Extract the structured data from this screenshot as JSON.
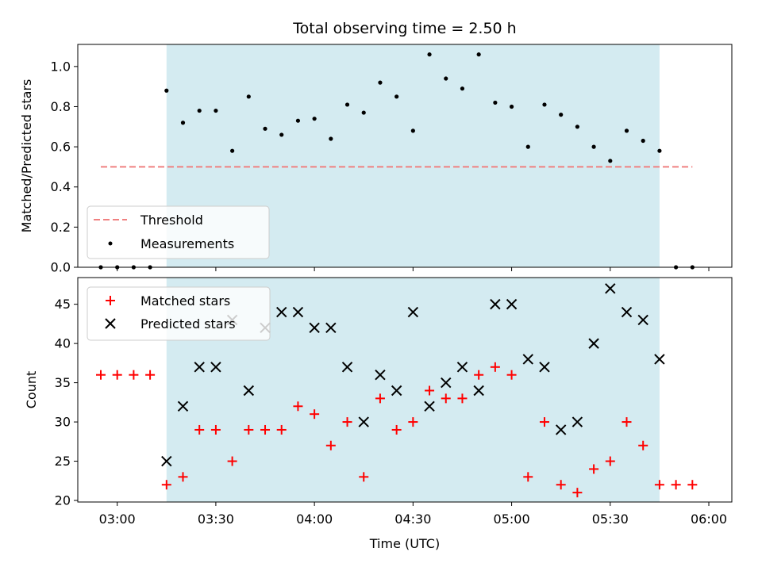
{
  "colors": {
    "shade": "#d4ebf1",
    "threshold": "#f08080",
    "matched": "#ff0000",
    "predicted": "#000000",
    "measurement": "#000000"
  },
  "chart_data": [
    {
      "type": "scatter",
      "title": "Total observing time = 2.50 h",
      "xlabel": "",
      "ylabel": "Matched/Predicted stars",
      "ylim": [
        0,
        1.11
      ],
      "xlim": [
        "02:48",
        "06:07"
      ],
      "yticks": [
        "0.0",
        "0.2",
        "0.4",
        "0.6",
        "0.8",
        "1.0"
      ],
      "shaded_interval": [
        "03:15",
        "05:45"
      ],
      "legend_position": "lower-left",
      "series": [
        {
          "name": "Threshold",
          "style": "dashed-line",
          "x": [
            "02:55",
            "05:55"
          ],
          "y": [
            0.5,
            0.5
          ]
        },
        {
          "name": "Measurements",
          "style": "dot",
          "x": [
            "02:55",
            "03:00",
            "03:05",
            "03:10",
            "03:15",
            "03:20",
            "03:25",
            "03:30",
            "03:35",
            "03:40",
            "03:45",
            "03:50",
            "03:55",
            "04:00",
            "04:05",
            "04:10",
            "04:15",
            "04:20",
            "04:25",
            "04:30",
            "04:35",
            "04:40",
            "04:45",
            "04:50",
            "04:55",
            "05:00",
            "05:05",
            "05:10",
            "05:15",
            "05:20",
            "05:25",
            "05:30",
            "05:35",
            "05:40",
            "05:45",
            "05:50",
            "05:55"
          ],
          "y": [
            0.0,
            0.0,
            0.0,
            0.0,
            0.88,
            0.72,
            0.78,
            0.78,
            0.58,
            0.85,
            0.69,
            0.66,
            0.73,
            0.74,
            0.64,
            0.81,
            0.77,
            0.92,
            0.85,
            0.68,
            1.06,
            0.94,
            0.89,
            1.06,
            0.82,
            0.8,
            0.6,
            0.81,
            0.76,
            0.7,
            0.6,
            0.53,
            0.68,
            0.63,
            0.58,
            0.0,
            0.0
          ]
        }
      ]
    },
    {
      "type": "scatter",
      "title": "",
      "xlabel": "Time (UTC)",
      "ylabel": "Count",
      "ylim": [
        19.8,
        48.4
      ],
      "xlim": [
        "02:48",
        "06:07"
      ],
      "yticks": [
        "20",
        "25",
        "30",
        "35",
        "40",
        "45"
      ],
      "xticks": [
        "03:00",
        "03:30",
        "04:00",
        "04:30",
        "05:00",
        "05:30",
        "06:00"
      ],
      "shaded_interval": [
        "03:15",
        "05:45"
      ],
      "legend_position": "upper-left",
      "series": [
        {
          "name": "Matched stars",
          "style": "plus",
          "x": [
            "02:55",
            "03:00",
            "03:05",
            "03:10",
            "03:15",
            "03:20",
            "03:25",
            "03:30",
            "03:35",
            "03:40",
            "03:45",
            "03:50",
            "03:55",
            "04:00",
            "04:05",
            "04:10",
            "04:15",
            "04:20",
            "04:25",
            "04:30",
            "04:35",
            "04:40",
            "04:45",
            "04:50",
            "04:55",
            "05:00",
            "05:05",
            "05:10",
            "05:15",
            "05:20",
            "05:25",
            "05:30",
            "05:35",
            "05:40",
            "05:45",
            "05:50",
            "05:55"
          ],
          "y": [
            36,
            36,
            36,
            36,
            22,
            23,
            29,
            29,
            25,
            29,
            29,
            29,
            32,
            31,
            27,
            30,
            23,
            33,
            29,
            30,
            34,
            33,
            33,
            36,
            37,
            36,
            23,
            30,
            22,
            21,
            24,
            25,
            30,
            27,
            22,
            22,
            22
          ]
        },
        {
          "name": "Predicted stars",
          "style": "x",
          "x": [
            "03:15",
            "03:20",
            "03:25",
            "03:30",
            "03:35",
            "03:40",
            "03:45",
            "03:50",
            "03:55",
            "04:00",
            "04:05",
            "04:10",
            "04:15",
            "04:20",
            "04:25",
            "04:30",
            "04:35",
            "04:40",
            "04:45",
            "04:50",
            "04:55",
            "05:00",
            "05:05",
            "05:10",
            "05:15",
            "05:20",
            "05:25",
            "05:30",
            "05:35",
            "05:40",
            "05:45"
          ],
          "y": [
            25,
            32,
            37,
            37,
            43,
            34,
            42,
            44,
            44,
            42,
            42,
            37,
            30,
            36,
            34,
            44,
            32,
            35,
            37,
            34,
            45,
            45,
            38,
            37,
            29,
            30,
            40,
            47,
            44,
            43,
            38
          ]
        }
      ]
    }
  ]
}
